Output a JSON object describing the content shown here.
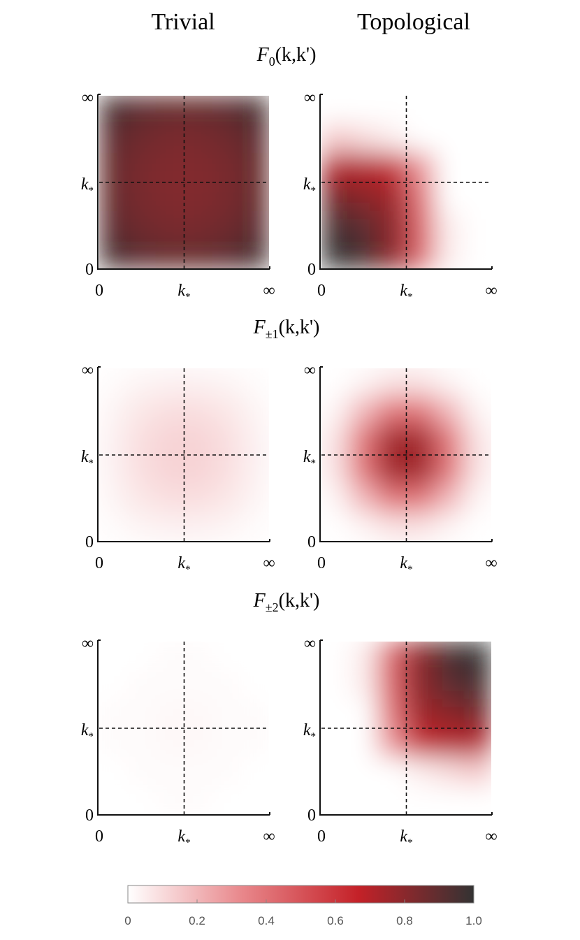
{
  "column_titles": [
    "Trivial",
    "Topological"
  ],
  "rows": [
    {
      "title": {
        "symbol": "F",
        "subscript": "0",
        "args": "(k,k')"
      },
      "panels": [
        {
          "grid": [
            [
              0.95,
              0.9,
              0.88,
              0.88,
              0.9,
              0.95
            ],
            [
              0.9,
              0.86,
              0.84,
              0.84,
              0.86,
              0.9
            ],
            [
              0.88,
              0.84,
              0.82,
              0.82,
              0.84,
              0.88
            ],
            [
              0.88,
              0.84,
              0.82,
              0.82,
              0.84,
              0.88
            ],
            [
              0.9,
              0.86,
              0.84,
              0.84,
              0.86,
              0.9
            ],
            [
              0.95,
              0.9,
              0.88,
              0.88,
              0.9,
              0.95
            ]
          ]
        },
        {
          "grid": [
            [
              0,
              0,
              0,
              0,
              0,
              0
            ],
            [
              0.15,
              0.1,
              0.05,
              0,
              0,
              0
            ],
            [
              0.7,
              0.7,
              0.65,
              0.3,
              0,
              0
            ],
            [
              0.85,
              0.8,
              0.75,
              0.4,
              0,
              0
            ],
            [
              0.95,
              0.9,
              0.8,
              0.45,
              0.05,
              0
            ],
            [
              1,
              0.95,
              0.8,
              0.45,
              0.05,
              0
            ]
          ]
        }
      ]
    },
    {
      "title": {
        "symbol": "F",
        "subscript": "±1",
        "args": "(k,k')"
      },
      "panels": [
        {
          "grid": [
            [
              0.01,
              0.03,
              0.04,
              0.04,
              0.03,
              0.01
            ],
            [
              0.03,
              0.07,
              0.09,
              0.09,
              0.07,
              0.03
            ],
            [
              0.04,
              0.09,
              0.12,
              0.12,
              0.09,
              0.04
            ],
            [
              0.04,
              0.09,
              0.12,
              0.12,
              0.09,
              0.04
            ],
            [
              0.03,
              0.07,
              0.09,
              0.09,
              0.07,
              0.03
            ],
            [
              0.01,
              0.03,
              0.04,
              0.04,
              0.03,
              0.01
            ]
          ]
        },
        {
          "grid": [
            [
              0,
              0.03,
              0.08,
              0.08,
              0.03,
              0
            ],
            [
              0.03,
              0.2,
              0.4,
              0.4,
              0.2,
              0.03
            ],
            [
              0.08,
              0.4,
              0.75,
              0.75,
              0.4,
              0.08
            ],
            [
              0.08,
              0.4,
              0.75,
              0.75,
              0.4,
              0.08
            ],
            [
              0.03,
              0.2,
              0.4,
              0.4,
              0.2,
              0.03
            ],
            [
              0,
              0.03,
              0.08,
              0.08,
              0.03,
              0
            ]
          ]
        }
      ]
    },
    {
      "title": {
        "symbol": "F",
        "subscript": "±2",
        "args": "(k,k')"
      },
      "panels": [
        {
          "grid": [
            [
              0,
              0,
              0.01,
              0.01,
              0,
              0
            ],
            [
              0,
              0.01,
              0.01,
              0.01,
              0.01,
              0
            ],
            [
              0.01,
              0.01,
              0.02,
              0.02,
              0.01,
              0.01
            ],
            [
              0.01,
              0.01,
              0.02,
              0.02,
              0.01,
              0.01
            ],
            [
              0,
              0.01,
              0.01,
              0.01,
              0.01,
              0
            ],
            [
              0,
              0,
              0.01,
              0.01,
              0,
              0
            ]
          ]
        },
        {
          "grid": [
            [
              0,
              0.05,
              0.45,
              0.8,
              0.95,
              1
            ],
            [
              0,
              0.05,
              0.45,
              0.8,
              0.9,
              0.95
            ],
            [
              0,
              0,
              0.4,
              0.75,
              0.8,
              0.85
            ],
            [
              0,
              0,
              0.3,
              0.65,
              0.7,
              0.7
            ],
            [
              0,
              0,
              0,
              0.05,
              0.1,
              0.15
            ],
            [
              0,
              0,
              0,
              0,
              0,
              0
            ]
          ]
        }
      ]
    }
  ],
  "axis_ticks": [
    {
      "text": "0"
    },
    {
      "text": "k",
      "subscript": "*"
    },
    {
      "text": "∞"
    }
  ],
  "colorbar": {
    "colormap": [
      "#ffffff",
      "#e8868a",
      "#c42128",
      "#333333"
    ],
    "lim": [
      0,
      1
    ],
    "ticks": [
      0,
      0.2,
      0.4,
      0.6,
      0.8,
      {
        "value": 1,
        "label": "1.0"
      }
    ]
  }
}
